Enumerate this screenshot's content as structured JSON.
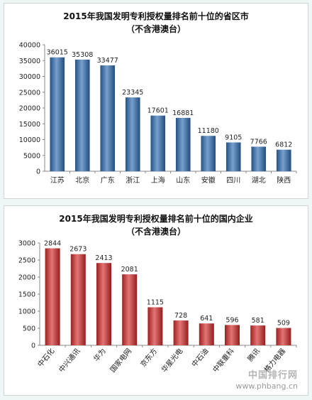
{
  "chart_data": [
    {
      "type": "bar",
      "title": "2015年我国发明专利授权量排名前十位的省区市",
      "subtitle": "（不含港澳台）",
      "categories": [
        "江苏",
        "北京",
        "广东",
        "浙江",
        "上海",
        "山东",
        "安徽",
        "四川",
        "湖北",
        "陕西"
      ],
      "values": [
        36015,
        35308,
        33477,
        23345,
        17601,
        16881,
        11180,
        9105,
        7766,
        6812
      ],
      "ylim": [
        0,
        40000
      ],
      "yticks": [
        0,
        5000,
        10000,
        15000,
        20000,
        25000,
        30000,
        35000,
        40000
      ],
      "bar_color": "#2f6db3",
      "grid": false,
      "legend": "none"
    },
    {
      "type": "bar",
      "title": "2015年我国发明专利授权量排名前十位的国内企业",
      "subtitle": "（不含港澳台）",
      "categories": [
        "中石化",
        "中兴通讯",
        "华为",
        "国家电网",
        "京东方",
        "华星光电",
        "中石油",
        "中联重科",
        "腾讯",
        "格力电器"
      ],
      "values": [
        2844,
        2673,
        2413,
        2081,
        1115,
        728,
        641,
        596,
        581,
        509
      ],
      "ylim": [
        0,
        3000
      ],
      "yticks": [
        0,
        500,
        1000,
        1500,
        2000,
        2500,
        3000
      ],
      "bar_color": "#d42a2a",
      "grid": false,
      "legend": "none"
    }
  ],
  "watermark": {
    "line1": "中国排行网",
    "line2": "www.phbang.cn"
  }
}
